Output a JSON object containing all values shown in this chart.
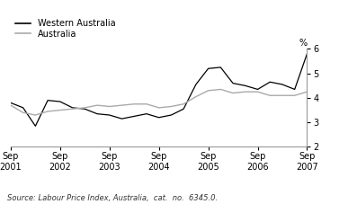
{
  "source": "Source: Labour Price Index, Australia,  cat.  no.  6345.0.",
  "ylabel": "%",
  "ylim": [
    2,
    6
  ],
  "yticks": [
    2,
    3,
    4,
    5,
    6
  ],
  "legend_wa": "Western Australia",
  "legend_au": "Australia",
  "wa_color": "#000000",
  "au_color": "#aaaaaa",
  "background": "#ffffff",
  "x_labels": [
    "Sep\n2001",
    "Sep\n2002",
    "Sep\n2003",
    "Sep\n2004",
    "Sep\n2005",
    "Sep\n2006",
    "Sep\n2007"
  ],
  "x_tick_positions": [
    0,
    4,
    8,
    12,
    16,
    20,
    24
  ],
  "wa_data": [
    3.8,
    3.6,
    2.85,
    3.9,
    3.85,
    3.6,
    3.55,
    3.35,
    3.3,
    3.15,
    3.25,
    3.35,
    3.2,
    3.3,
    3.55,
    4.55,
    5.2,
    5.25,
    4.6,
    4.5,
    4.35,
    4.65,
    4.55,
    4.35,
    5.8
  ],
  "au_data": [
    3.7,
    3.4,
    3.3,
    3.45,
    3.5,
    3.55,
    3.6,
    3.7,
    3.65,
    3.7,
    3.75,
    3.75,
    3.6,
    3.65,
    3.75,
    4.05,
    4.3,
    4.35,
    4.2,
    4.25,
    4.25,
    4.1,
    4.1,
    4.1,
    4.25
  ]
}
